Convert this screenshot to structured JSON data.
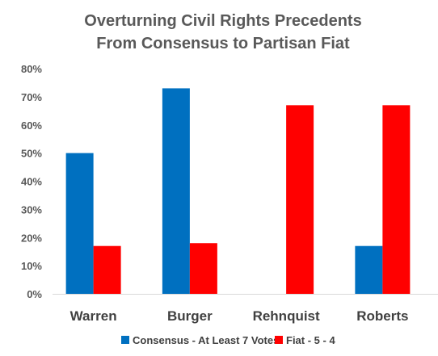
{
  "chart_data": {
    "type": "bar",
    "title": [
      "Overturning Civil Rights Precedents",
      "From Consensus to Partisan Fiat"
    ],
    "categories": [
      "Warren",
      "Burger",
      "Rehnquist",
      "Roberts"
    ],
    "series": [
      {
        "name": "Consensus - At Least 7 Votes",
        "color": "#0070C0",
        "values": [
          50,
          73,
          0,
          17
        ]
      },
      {
        "name": "Fiat - 5 - 4",
        "color": "#FF0000",
        "values": [
          17,
          18,
          67,
          67
        ]
      }
    ],
    "yticks": [
      "0%",
      "10%",
      "20%",
      "30%",
      "40%",
      "50%",
      "60%",
      "70%",
      "80%"
    ],
    "ylim": [
      0,
      80
    ],
    "grid": false,
    "legend_position": "bottom"
  }
}
